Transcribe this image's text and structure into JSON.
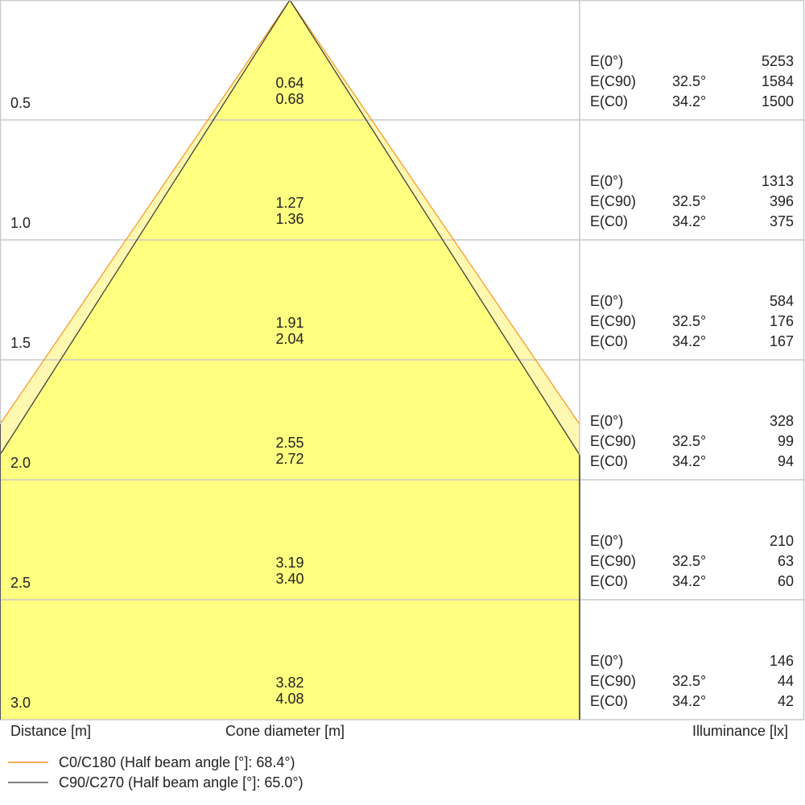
{
  "colors": {
    "cone_fill": "#ffff80",
    "cone_outer_fill": "#fff8b0",
    "c0_line": "#f7941d",
    "c90_line": "#333333",
    "grid": "#c8c8c8"
  },
  "rows": [
    {
      "distance": "0.5",
      "d1": "0.64",
      "d2": "0.68",
      "e0": "5253",
      "ec90_angle": "32.5°",
      "ec90": "1584",
      "ec0_angle": "34.2°",
      "ec0": "1500"
    },
    {
      "distance": "1.0",
      "d1": "1.27",
      "d2": "1.36",
      "e0": "1313",
      "ec90_angle": "32.5°",
      "ec90": "396",
      "ec0_angle": "34.2°",
      "ec0": "375"
    },
    {
      "distance": "1.5",
      "d1": "1.91",
      "d2": "2.04",
      "e0": "584",
      "ec90_angle": "32.5°",
      "ec90": "176",
      "ec0_angle": "34.2°",
      "ec0": "167"
    },
    {
      "distance": "2.0",
      "d1": "2.55",
      "d2": "2.72",
      "e0": "328",
      "ec90_angle": "32.5°",
      "ec90": "99",
      "ec0_angle": "34.2°",
      "ec0": "94"
    },
    {
      "distance": "2.5",
      "d1": "3.19",
      "d2": "3.40",
      "e0": "210",
      "ec90_angle": "32.5°",
      "ec90": "63",
      "ec0_angle": "34.2°",
      "ec0": "60"
    },
    {
      "distance": "3.0",
      "d1": "3.82",
      "d2": "4.08",
      "e0": "146",
      "ec90_angle": "32.5°",
      "ec90": "44",
      "ec0_angle": "34.2°",
      "ec0": "42"
    }
  ],
  "labels": {
    "e0": "E(0°)",
    "ec90": "E(C90)",
    "ec0": "E(C0)",
    "distance": "Distance [m]",
    "cone": "Cone diameter [m]",
    "illuminance": "Illuminance [lx]"
  },
  "legend": [
    {
      "label": "C0/C180 (Half beam angle [°]: 68.4°)",
      "color": "#f7941d"
    },
    {
      "label": "C90/C270 (Half beam angle [°]: 65.0°)",
      "color": "#333333"
    }
  ]
}
